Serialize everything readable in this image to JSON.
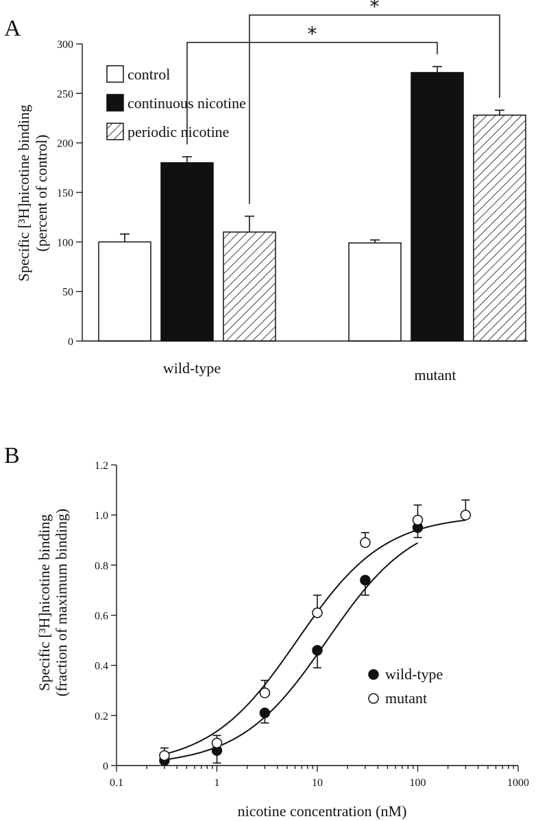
{
  "panel_a_label": "A",
  "panel_b_label": "B",
  "colors": {
    "ink": "#111111",
    "control": "#ffffff",
    "continuous": "#111111",
    "periodic_hatch": "#111111"
  },
  "chart_data": [
    {
      "type": "bar",
      "panel": "A",
      "ylabel_line1": "Specific [³H]nicotine binding",
      "ylabel_line2": "(percent of control)",
      "ylim": [
        0,
        300
      ],
      "yticks": [
        0,
        50,
        100,
        150,
        200,
        250,
        300
      ],
      "categories": [
        "wild-type",
        "mutant"
      ],
      "legend_position": "top-left",
      "series": [
        {
          "name": "control",
          "fill": "white",
          "values": [
            100,
            99
          ],
          "errors": [
            8,
            3
          ]
        },
        {
          "name": "continuous nicotine",
          "fill": "black",
          "values": [
            180,
            271
          ],
          "errors": [
            6,
            6
          ]
        },
        {
          "name": "periodic nicotine",
          "fill": "hatched",
          "values": [
            110,
            228
          ],
          "errors": [
            16,
            5
          ]
        }
      ],
      "significance": [
        {
          "label": "*",
          "from": "wild-type continuous nicotine",
          "to": "mutant continuous nicotine"
        },
        {
          "label": "*",
          "from": "wild-type periodic nicotine",
          "to": "mutant periodic nicotine"
        }
      ]
    },
    {
      "type": "scatter",
      "panel": "B",
      "xlabel": "nicotine concentration (nM)",
      "ylabel_line1": "Specific [³H]nicotine binding",
      "ylabel_line2": "(fraction of maximum binding)",
      "xscale": "log",
      "xlim": [
        0.1,
        1000
      ],
      "xticks": [
        0.1,
        1,
        10,
        100,
        1000
      ],
      "xtick_labels": [
        "0.1",
        "1",
        "10",
        "100",
        "1000"
      ],
      "ylim": [
        0,
        1.2
      ],
      "yticks": [
        0,
        0.2,
        0.4,
        0.6,
        0.8,
        1.0,
        1.2
      ],
      "ytick_labels": [
        "0",
        "0.2",
        "0.4",
        "0.6",
        "0.8",
        "1.0",
        "1.2"
      ],
      "legend_position": "lower-right",
      "series": [
        {
          "name": "wild-type",
          "marker": "filled-circle",
          "x": [
            0.3,
            1,
            3,
            10,
            30,
            100
          ],
          "y": [
            0.02,
            0.06,
            0.21,
            0.46,
            0.74,
            0.95
          ],
          "err": [
            0.01,
            0.05,
            0.04,
            0.07,
            0.06,
            0.04
          ],
          "fit_ec50": 12.5
        },
        {
          "name": "mutant",
          "marker": "open-circle",
          "x": [
            0.3,
            1,
            3,
            10,
            30,
            100,
            300
          ],
          "y": [
            0.04,
            0.09,
            0.29,
            0.61,
            0.89,
            0.98,
            1.0
          ],
          "err": [
            0.03,
            0.03,
            0.05,
            0.07,
            0.04,
            0.06,
            0.06
          ],
          "fit_ec50": 6.3
        }
      ]
    }
  ]
}
